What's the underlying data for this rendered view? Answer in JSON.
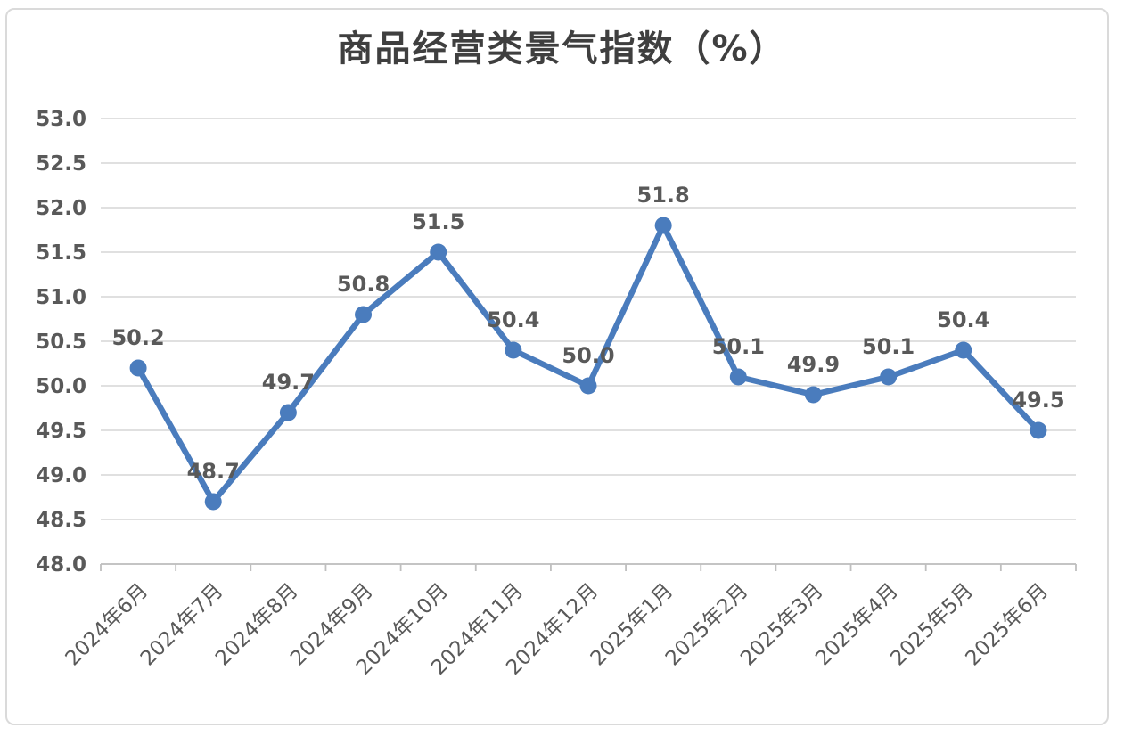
{
  "chart_data": {
    "type": "line",
    "title": "商品经营类景气指数（%）",
    "categories": [
      "2024年6月",
      "2024年7月",
      "2024年8月",
      "2024年9月",
      "2024年10月",
      "2024年11月",
      "2024年12月",
      "2025年1月",
      "2025年2月",
      "2025年3月",
      "2025年4月",
      "2025年5月",
      "2025年6月"
    ],
    "values": [
      50.2,
      48.7,
      49.7,
      50.8,
      51.5,
      50.4,
      50.0,
      51.8,
      50.1,
      49.9,
      50.1,
      50.4,
      49.5
    ],
    "xlabel": "",
    "ylabel": "",
    "ylim": [
      48.0,
      53.0
    ],
    "ytick_step": 0.5,
    "grid": true,
    "legend_position": "none",
    "data_labels": true,
    "x_label_rotation_deg": -45,
    "colors": {
      "series": "#4a7cbd",
      "data_label": "#595959",
      "axis_label": "#595959",
      "title": "#3f3f3f",
      "gridline": "#dcdcdc",
      "axis_line": "#bfbfbf",
      "border": "#dadada",
      "background": "#ffffff"
    }
  }
}
